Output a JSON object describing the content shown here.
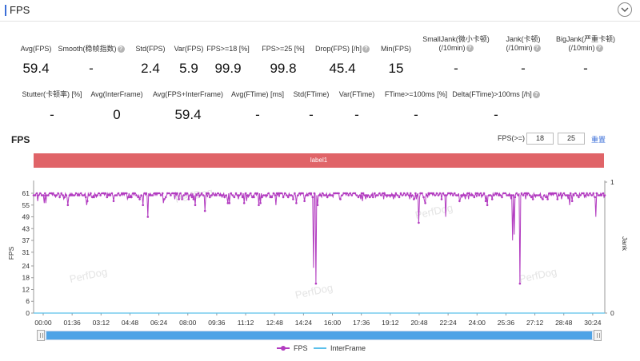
{
  "header": {
    "title": "FPS"
  },
  "metrics_row1": [
    {
      "label": "Avg(FPS)",
      "value": "59.4",
      "help": false
    },
    {
      "label": "Smooth(稳帧指数)",
      "value": "-",
      "help": true
    },
    {
      "label": "Std(FPS)",
      "value": "2.4",
      "help": false
    },
    {
      "label": "Var(FPS)",
      "value": "5.9",
      "help": false
    },
    {
      "label": "FPS>=18 [%]",
      "value": "99.9",
      "help": false
    },
    {
      "label": "FPS>=25 [%]",
      "value": "99.8",
      "help": false
    },
    {
      "label": "Drop(FPS) [/h]",
      "value": "45.4",
      "help": true
    },
    {
      "label": "Min(FPS)",
      "value": "15",
      "help": false
    },
    {
      "label": "SmallJank(微小卡顿)",
      "label2": "(/10min)",
      "value": "-",
      "help": true
    },
    {
      "label": "Jank(卡顿)",
      "label2": "(/10min)",
      "value": "-",
      "help": true
    },
    {
      "label": "BigJank(严重卡顿)",
      "label2": "(/10min)",
      "value": "-",
      "help": true
    }
  ],
  "metrics_row2": [
    {
      "label": "Stutter(卡顿率) [%]",
      "value": "-",
      "help": false
    },
    {
      "label": "Avg(InterFrame)",
      "value": "0",
      "help": false
    },
    {
      "label": "Avg(FPS+InterFrame)",
      "value": "59.4",
      "help": false
    },
    {
      "label": "Avg(FTime) [ms]",
      "value": "-",
      "help": false
    },
    {
      "label": "Std(FTime)",
      "value": "-",
      "help": false
    },
    {
      "label": "Var(FTime)",
      "value": "-",
      "help": false
    },
    {
      "label": "FTime>=100ms [%]",
      "value": "-",
      "help": false
    },
    {
      "label": "Delta(FTime)>100ms [/h]",
      "value": "-",
      "help": true
    }
  ],
  "chart_section": {
    "title": "FPS",
    "fps_threshold_label": "FPS(>=)",
    "threshold_1": "18",
    "threshold_2": "25",
    "reset_label": "重置",
    "label_bar": "label1"
  },
  "chart_data": {
    "type": "line",
    "x_label_ticks": [
      "00:00",
      "01:36",
      "03:12",
      "04:48",
      "06:24",
      "08:00",
      "09:36",
      "11:12",
      "12:48",
      "14:24",
      "16:00",
      "17:36",
      "19:12",
      "20:48",
      "22:24",
      "24:00",
      "25:36",
      "27:12",
      "28:48",
      "30:24"
    ],
    "y_left_ticks": [
      0,
      6,
      12,
      18,
      24,
      31,
      37,
      43,
      49,
      55,
      61
    ],
    "y_right_ticks": [
      0,
      1
    ],
    "ylabel": "FPS",
    "y2label": "Jank",
    "ylim": [
      0,
      61
    ],
    "x_range_minutes": [
      0,
      31.6
    ],
    "grid": false,
    "watermark": "PerfDog",
    "series": [
      {
        "name": "FPS",
        "color": "#b23bc0",
        "baseline": 60,
        "dips": [
          {
            "t": 15.6,
            "v": 15
          },
          {
            "t": 15.5,
            "v": 23
          },
          {
            "t": 15.7,
            "v": 55
          },
          {
            "t": 26.9,
            "v": 15
          },
          {
            "t": 26.5,
            "v": 37
          },
          {
            "t": 26.6,
            "v": 40
          },
          {
            "t": 6.3,
            "v": 49
          },
          {
            "t": 9.5,
            "v": 52
          },
          {
            "t": 21.3,
            "v": 46
          },
          {
            "t": 22.8,
            "v": 49
          },
          {
            "t": 31.1,
            "v": 49
          }
        ]
      },
      {
        "name": "InterFrame",
        "color": "#5bc0eb",
        "baseline": 0
      }
    ]
  },
  "legend": [
    {
      "name": "FPS",
      "color": "#b23bc0"
    },
    {
      "name": "InterFrame",
      "color": "#5bc0eb"
    }
  ]
}
